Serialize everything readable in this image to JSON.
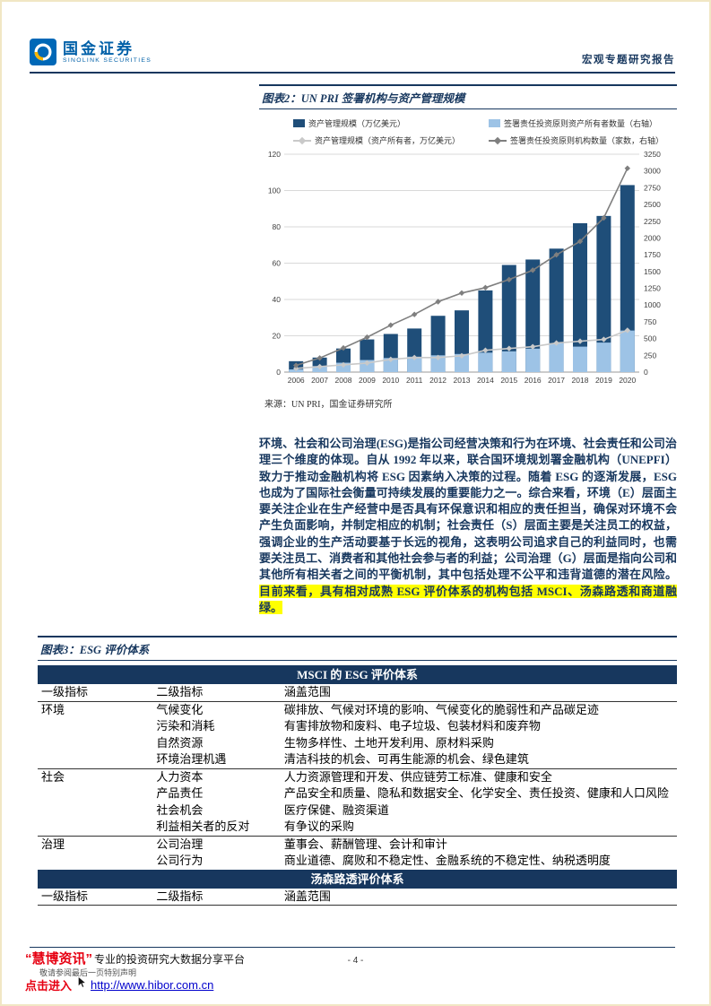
{
  "page": {
    "header": {
      "logo_cn": "国金证券",
      "logo_en": "SINOLINK SECURITIES",
      "report_type": "宏观专题研究报告"
    },
    "footer": {
      "page_number": "- 4 -",
      "disclaimer": "敬请参阅最后一页特别声明",
      "watermark_brand": "“慧博资讯”",
      "watermark_tagline": "专业的投资研究大数据分享平台",
      "watermark_cta": "点击进入",
      "watermark_url": "http://www.hibor.com.cn"
    }
  },
  "figure2": {
    "title": "图表2：UN PRI 签署机构与资产管理规模",
    "source": "来源：UN PRI，国金证券研究所"
  },
  "chart_data": {
    "type": "bar",
    "subtype": "combo-dual-axis-bar-line",
    "title": "UN PRI 签署机构与资产管理规模",
    "categories": [
      "2006",
      "2007",
      "2008",
      "2009",
      "2010",
      "2011",
      "2012",
      "2013",
      "2014",
      "2015",
      "2016",
      "2017",
      "2018",
      "2019",
      "2020"
    ],
    "series": [
      {
        "name": "资产管理规模（万亿美元）",
        "type": "bar",
        "axis": "left",
        "color": "#1F4E79",
        "values": [
          6,
          8,
          13,
          18,
          21,
          24,
          31,
          34,
          45,
          59,
          62,
          68,
          82,
          86,
          103
        ]
      },
      {
        "name": "签署责任投资原则资产所有者数量（右轴）",
        "type": "bar",
        "axis": "right",
        "color": "#9DC3E6",
        "values": [
          40,
          90,
          140,
          180,
          210,
          230,
          250,
          270,
          290,
          310,
          350,
          430,
          380,
          440,
          620
        ]
      },
      {
        "name": "资产管理规模（资产所有者，万亿美元）",
        "type": "line",
        "axis": "left",
        "color": "#C9C9C9",
        "values": [
          2,
          3,
          4,
          5,
          7,
          8,
          8,
          9,
          12,
          13,
          14,
          16,
          17,
          18,
          23
        ]
      },
      {
        "name": "签署责任投资原则机构数量（家数，右轴）",
        "type": "line",
        "axis": "right",
        "color": "#7F7F7F",
        "values": [
          100,
          210,
          360,
          520,
          700,
          860,
          1050,
          1180,
          1260,
          1380,
          1520,
          1750,
          1950,
          2300,
          3040
        ]
      }
    ],
    "left_axis": {
      "min": 0,
      "max": 120,
      "step": 20
    },
    "right_axis": {
      "min": 0,
      "max": 3250,
      "step": 250
    },
    "grid": true,
    "legend_position": "top"
  },
  "paragraph": {
    "lead": "环境、社会和公司治理(ESG)是指公司经营决策和行为在环境、社会责任和公司治理三个维度的体现。",
    "body": "自从 1992 年以来，联合国环境规划署金融机构（UNEPFI）致力于推动金融机构将 ESG 因素纳入决策的过程。随着 ESG 的逐渐发展，ESG 也成为了国际社会衡量可持续发展的重要能力之一。综合来看，环境（E）层面主要关注企业在生产经营中是否具有环保意识和相应的责任担当，确保对环境不会产生负面影响，并制定相应的机制；社会责任（S）层面主要是关注员工的权益，强调企业的生产活动要基于长远的视角，这表明公司追求自己的利益同时，也需要关注员工、消费者和其他社会参与者的利益；公司治理（G）层面是指向公司和其他所有相关者之间的平衡机制，其中包括处理不公平和违背道德的潜在风险。",
    "highlight": "目前来看，具有相对成熟 ESG 评价体系的机构包括 MSCI、汤森路透和商道融绿。"
  },
  "figure3": {
    "title": "图表3：ESG 评价体系",
    "bands": [
      {
        "band_title": "MSCI 的 ESG 评价体系",
        "columns": [
          "一级指标",
          "二级指标",
          "涵盖范围"
        ],
        "groups": [
          {
            "level1": "环境",
            "rows": [
              [
                "气候变化",
                "碳排放、气候对环境的影响、气候变化的脆弱性和产品碳足迹"
              ],
              [
                "污染和消耗",
                "有害排放物和废料、电子垃圾、包装材料和废弃物"
              ],
              [
                "自然资源",
                "生物多样性、土地开发利用、原材料采购"
              ],
              [
                "环境治理机遇",
                "清洁科技的机会、可再生能源的机会、绿色建筑"
              ]
            ]
          },
          {
            "level1": "社会",
            "rows": [
              [
                "人力资本",
                "人力资源管理和开发、供应链劳工标准、健康和安全"
              ],
              [
                "产品责任",
                "产品安全和质量、隐私和数据安全、化学安全、责任投资、健康和人口风险"
              ],
              [
                "社会机会",
                "医疗保健、融资渠道"
              ],
              [
                "利益相关者的反对",
                "有争议的采购"
              ]
            ]
          },
          {
            "level1": "治理",
            "rows": [
              [
                "公司治理",
                "董事会、薪酬管理、会计和审计"
              ],
              [
                "公司行为",
                "商业道德、腐败和不稳定性、金融系统的不稳定性、纳税透明度"
              ]
            ]
          }
        ]
      },
      {
        "band_title": "汤森路透评价体系",
        "columns": [
          "一级指标",
          "二级指标",
          "涵盖范围"
        ],
        "groups": []
      }
    ]
  }
}
